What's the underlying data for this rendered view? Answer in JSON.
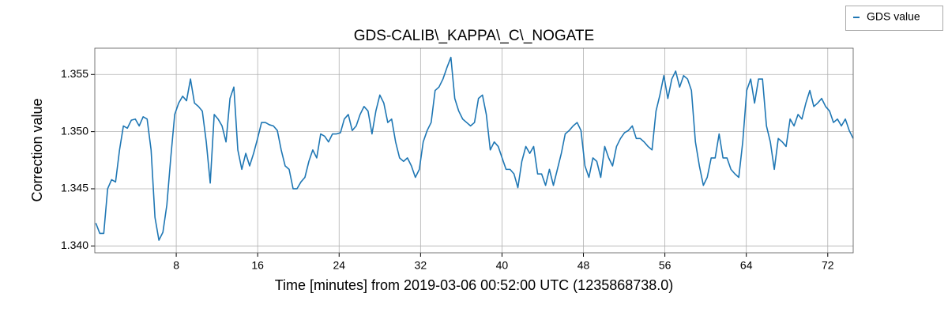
{
  "chart_data": {
    "type": "line",
    "title": "GDS-CALIB\\_KAPPA\\_C\\_NOGATE",
    "xlabel": "Time [minutes] from 2019-03-06 00:52:00 UTC (1235868738.0)",
    "ylabel": "Correction value",
    "x": [
      0.1,
      0.49,
      0.88,
      1.26,
      1.65,
      2.04,
      2.43,
      2.81,
      3.2,
      3.59,
      3.98,
      4.36,
      4.75,
      5.14,
      5.53,
      5.91,
      6.3,
      6.69,
      7.08,
      7.46,
      7.85,
      8.24,
      8.63,
      9.01,
      9.4,
      9.79,
      10.18,
      10.56,
      10.95,
      11.34,
      11.73,
      12.11,
      12.5,
      12.89,
      13.28,
      13.66,
      14.05,
      14.44,
      14.83,
      15.21,
      15.6,
      15.99,
      16.38,
      16.76,
      17.15,
      17.54,
      17.93,
      18.31,
      18.7,
      19.09,
      19.48,
      19.86,
      20.25,
      20.64,
      21.03,
      21.41,
      21.8,
      22.19,
      22.58,
      22.96,
      23.35,
      23.74,
      24.13,
      24.51,
      24.9,
      25.29,
      25.68,
      26.06,
      26.45,
      26.84,
      27.23,
      27.61,
      28,
      28.39,
      28.78,
      29.16,
      29.55,
      29.94,
      30.33,
      30.71,
      31.1,
      31.49,
      31.88,
      32.26,
      32.65,
      33.04,
      33.43,
      33.81,
      34.2,
      34.59,
      34.98,
      35.36,
      35.75,
      36.14,
      36.53,
      36.91,
      37.3,
      37.69,
      38.08,
      38.46,
      38.85,
      39.24,
      39.63,
      40.01,
      40.4,
      40.79,
      41.18,
      41.56,
      41.95,
      42.34,
      42.73,
      43.11,
      43.5,
      43.89,
      44.28,
      44.66,
      45.05,
      45.44,
      45.83,
      46.21,
      46.6,
      46.99,
      47.38,
      47.76,
      48.15,
      48.54,
      48.93,
      49.31,
      49.7,
      50.09,
      50.48,
      50.86,
      51.25,
      51.64,
      52.03,
      52.41,
      52.8,
      53.19,
      53.58,
      53.96,
      54.35,
      54.74,
      55.13,
      55.51,
      55.9,
      56.29,
      56.68,
      57.06,
      57.45,
      57.84,
      58.23,
      58.61,
      59,
      59.39,
      59.78,
      60.16,
      60.55,
      60.94,
      61.33,
      61.71,
      62.1,
      62.49,
      62.88,
      63.26,
      63.65,
      64.04,
      64.43,
      64.81,
      65.2,
      65.59,
      65.98,
      66.36,
      66.75,
      67.14,
      67.53,
      67.91,
      68.3,
      68.69,
      69.08,
      69.46,
      69.85,
      70.24,
      70.63,
      71.01,
      71.4,
      71.79,
      72.18,
      72.56,
      72.95,
      73.34,
      73.73,
      74.11,
      74.5
    ],
    "series": [
      {
        "name": "GDS value",
        "color": "#1f77b4",
        "values": [
          1.342,
          1.3411,
          1.3411,
          1.345,
          1.3458,
          1.3456,
          1.3484,
          1.3505,
          1.3503,
          1.351,
          1.3511,
          1.3505,
          1.3513,
          1.3511,
          1.3484,
          1.3425,
          1.3405,
          1.3412,
          1.3436,
          1.3477,
          1.3515,
          1.3525,
          1.3531,
          1.3527,
          1.3546,
          1.3525,
          1.3522,
          1.3518,
          1.3491,
          1.3455,
          1.3515,
          1.3511,
          1.3505,
          1.3491,
          1.3529,
          1.3539,
          1.3484,
          1.3467,
          1.3481,
          1.347,
          1.3481,
          1.3494,
          1.3508,
          1.3508,
          1.3506,
          1.3505,
          1.3501,
          1.3484,
          1.347,
          1.3467,
          1.345,
          1.345,
          1.3456,
          1.346,
          1.3474,
          1.3484,
          1.3477,
          1.3498,
          1.3496,
          1.3491,
          1.3498,
          1.3498,
          1.3499,
          1.3511,
          1.3515,
          1.3501,
          1.3505,
          1.3515,
          1.3522,
          1.3518,
          1.3498,
          1.3518,
          1.3532,
          1.3525,
          1.3508,
          1.3511,
          1.3491,
          1.3477,
          1.3474,
          1.3477,
          1.347,
          1.346,
          1.3467,
          1.3491,
          1.3501,
          1.3508,
          1.3536,
          1.3539,
          1.3546,
          1.3556,
          1.3565,
          1.3529,
          1.3518,
          1.3511,
          1.3508,
          1.3505,
          1.3508,
          1.3529,
          1.3532,
          1.3515,
          1.3484,
          1.3491,
          1.3487,
          1.3477,
          1.3467,
          1.3467,
          1.3463,
          1.3451,
          1.3474,
          1.3487,
          1.3481,
          1.3487,
          1.3463,
          1.3463,
          1.3453,
          1.3467,
          1.3453,
          1.3467,
          1.3481,
          1.3498,
          1.3501,
          1.3505,
          1.3508,
          1.3501,
          1.347,
          1.346,
          1.3477,
          1.3474,
          1.346,
          1.3487,
          1.3477,
          1.347,
          1.3487,
          1.3494,
          1.3499,
          1.3501,
          1.3505,
          1.3494,
          1.3494,
          1.3491,
          1.3487,
          1.3484,
          1.3518,
          1.3532,
          1.3549,
          1.3529,
          1.3546,
          1.3553,
          1.3539,
          1.3549,
          1.3546,
          1.3536,
          1.3491,
          1.347,
          1.3453,
          1.346,
          1.3477,
          1.3477,
          1.3498,
          1.3477,
          1.3477,
          1.3467,
          1.3463,
          1.346,
          1.3491,
          1.3536,
          1.3546,
          1.3525,
          1.3546,
          1.3546,
          1.3505,
          1.3491,
          1.3467,
          1.3494,
          1.3491,
          1.3487,
          1.3511,
          1.3505,
          1.3515,
          1.3511,
          1.3525,
          1.3536,
          1.3522,
          1.3525,
          1.3529,
          1.3522,
          1.3518,
          1.3508,
          1.3511,
          1.3505,
          1.3511,
          1.3501,
          1.3494
        ]
      }
    ],
    "xlim": [
      0,
      74.5
    ],
    "ylim": [
      1.3394,
      1.3573
    ],
    "xticks": [
      8,
      16,
      24,
      32,
      40,
      48,
      56,
      64,
      72
    ],
    "yticks": [
      {
        "value": 1.34,
        "label": "1.340"
      },
      {
        "value": 1.345,
        "label": "1.345"
      },
      {
        "value": 1.35,
        "label": "1.350"
      },
      {
        "value": 1.355,
        "label": "1.355"
      }
    ],
    "grid": true
  }
}
